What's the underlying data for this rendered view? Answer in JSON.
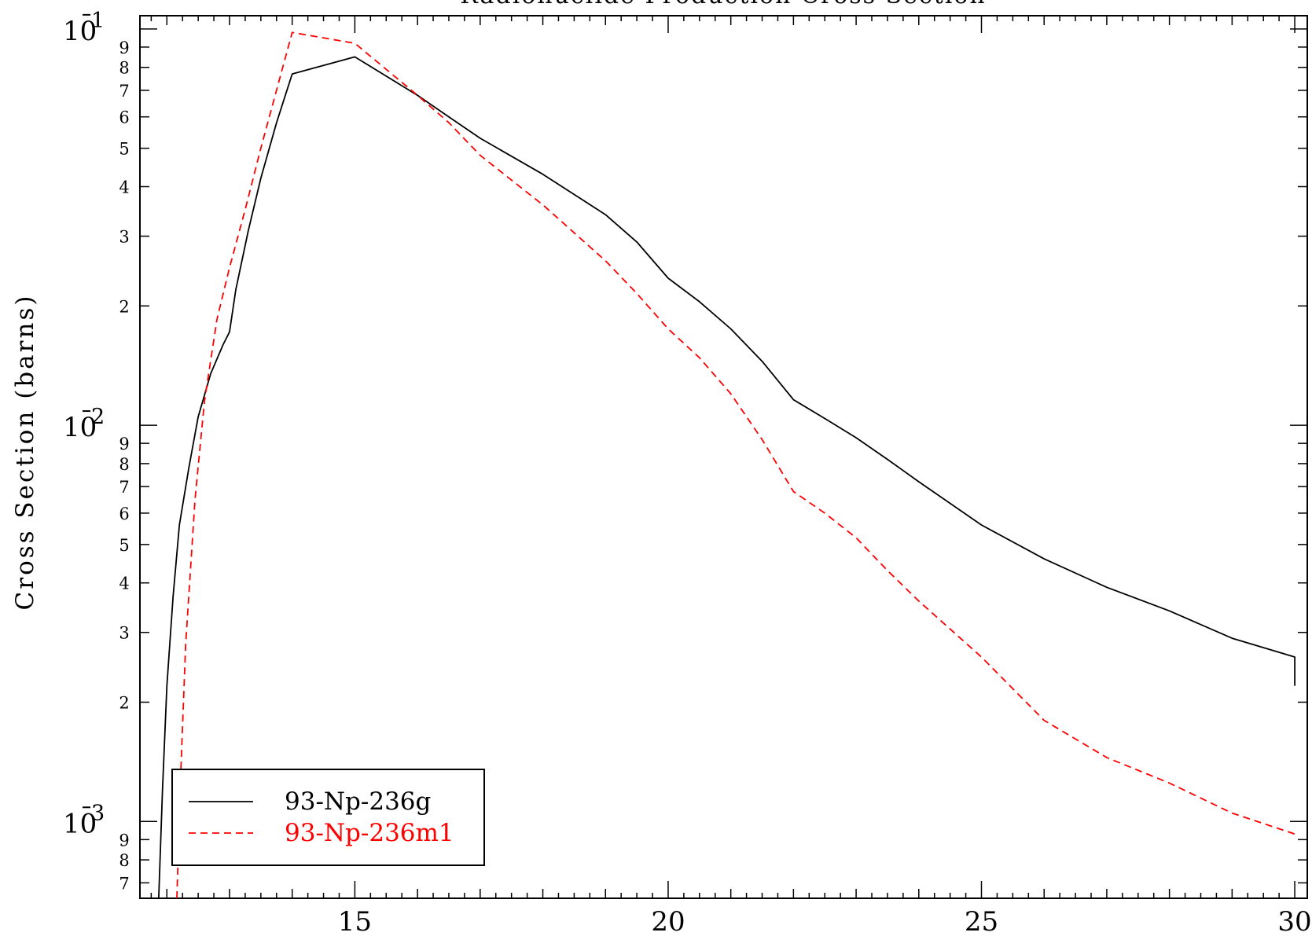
{
  "chart_data": {
    "type": "line",
    "title": "Radionuclide Production Cross Section",
    "xlabel": "",
    "ylabel": "Cross Section (barns)",
    "yscale": "log",
    "xlim": [
      11.57,
      30.2
    ],
    "ylim": [
      0.00064,
      0.108
    ],
    "grid": false,
    "legend_position": "bottom-left",
    "x_ticks": [
      15,
      20,
      25,
      30
    ],
    "x_tick_labels": [
      "15",
      "20",
      "25",
      "30"
    ],
    "y_major_ticks": [
      {
        "value": 0.1,
        "base": "10",
        "exponent": "-1"
      },
      {
        "value": 0.01,
        "base": "10",
        "exponent": "-2"
      },
      {
        "value": 0.001,
        "base": "10",
        "exponent": "-3"
      }
    ],
    "y_minor_tick_labels": [
      {
        "value": 0.09,
        "label": "9"
      },
      {
        "value": 0.08,
        "label": "8"
      },
      {
        "value": 0.07,
        "label": "7"
      },
      {
        "value": 0.06,
        "label": "6"
      },
      {
        "value": 0.05,
        "label": "5"
      },
      {
        "value": 0.04,
        "label": "4"
      },
      {
        "value": 0.03,
        "label": "3"
      },
      {
        "value": 0.02,
        "label": "2"
      },
      {
        "value": 0.009,
        "label": "9"
      },
      {
        "value": 0.008,
        "label": "8"
      },
      {
        "value": 0.007,
        "label": "7"
      },
      {
        "value": 0.006,
        "label": "6"
      },
      {
        "value": 0.005,
        "label": "5"
      },
      {
        "value": 0.004,
        "label": "4"
      },
      {
        "value": 0.003,
        "label": "3"
      },
      {
        "value": 0.002,
        "label": "2"
      },
      {
        "value": 0.0009,
        "label": "9"
      },
      {
        "value": 0.0008,
        "label": "8"
      },
      {
        "value": 0.0007,
        "label": "7"
      }
    ],
    "series": [
      {
        "name": "93-Np-236g",
        "color": "#000000",
        "dash": "solid",
        "x": [
          11.87,
          11.93,
          12.0,
          12.1,
          12.2,
          12.35,
          12.5,
          12.7,
          12.9,
          13.0,
          13.1,
          13.3,
          13.5,
          13.75,
          14.0,
          15.0,
          16.0,
          16.5,
          17.0,
          18.0,
          19.0,
          19.5,
          20.0,
          20.5,
          21.0,
          21.5,
          22.0,
          22.5,
          23.0,
          23.5,
          24.0,
          25.0,
          26.0,
          27.0,
          28.0,
          29.0,
          30.0,
          30.0
        ],
        "y": [
          0.00064,
          0.0012,
          0.0022,
          0.0037,
          0.0056,
          0.0078,
          0.0105,
          0.0135,
          0.016,
          0.0172,
          0.022,
          0.031,
          0.042,
          0.058,
          0.077,
          0.085,
          0.068,
          0.06,
          0.053,
          0.043,
          0.034,
          0.029,
          0.0235,
          0.0205,
          0.0175,
          0.0145,
          0.0116,
          0.0104,
          0.0093,
          0.0082,
          0.0072,
          0.0056,
          0.0046,
          0.0039,
          0.0034,
          0.0029,
          0.0026,
          0.0022
        ],
        "note_last_vertical_drop": false
      },
      {
        "name": "93-Np-236m1",
        "color": "#ff0000",
        "dash": "dashed",
        "x": [
          12.16,
          12.22,
          12.3,
          12.45,
          12.6,
          12.8,
          13.0,
          13.25,
          13.5,
          14.0,
          15.0,
          16.0,
          16.5,
          17.0,
          18.0,
          19.0,
          19.5,
          20.0,
          20.5,
          21.0,
          21.5,
          22.0,
          22.5,
          23.0,
          23.5,
          24.0,
          25.0,
          26.0,
          27.0,
          28.0,
          29.0,
          30.0
        ],
        "y": [
          0.00064,
          0.0013,
          0.0028,
          0.0065,
          0.0115,
          0.0185,
          0.025,
          0.035,
          0.05,
          0.098,
          0.092,
          0.068,
          0.058,
          0.048,
          0.036,
          0.026,
          0.0215,
          0.0175,
          0.0148,
          0.012,
          0.0092,
          0.0068,
          0.006,
          0.0052,
          0.0043,
          0.0036,
          0.0026,
          0.0018,
          0.00145,
          0.00125,
          0.00105,
          0.00093
        ]
      }
    ]
  }
}
